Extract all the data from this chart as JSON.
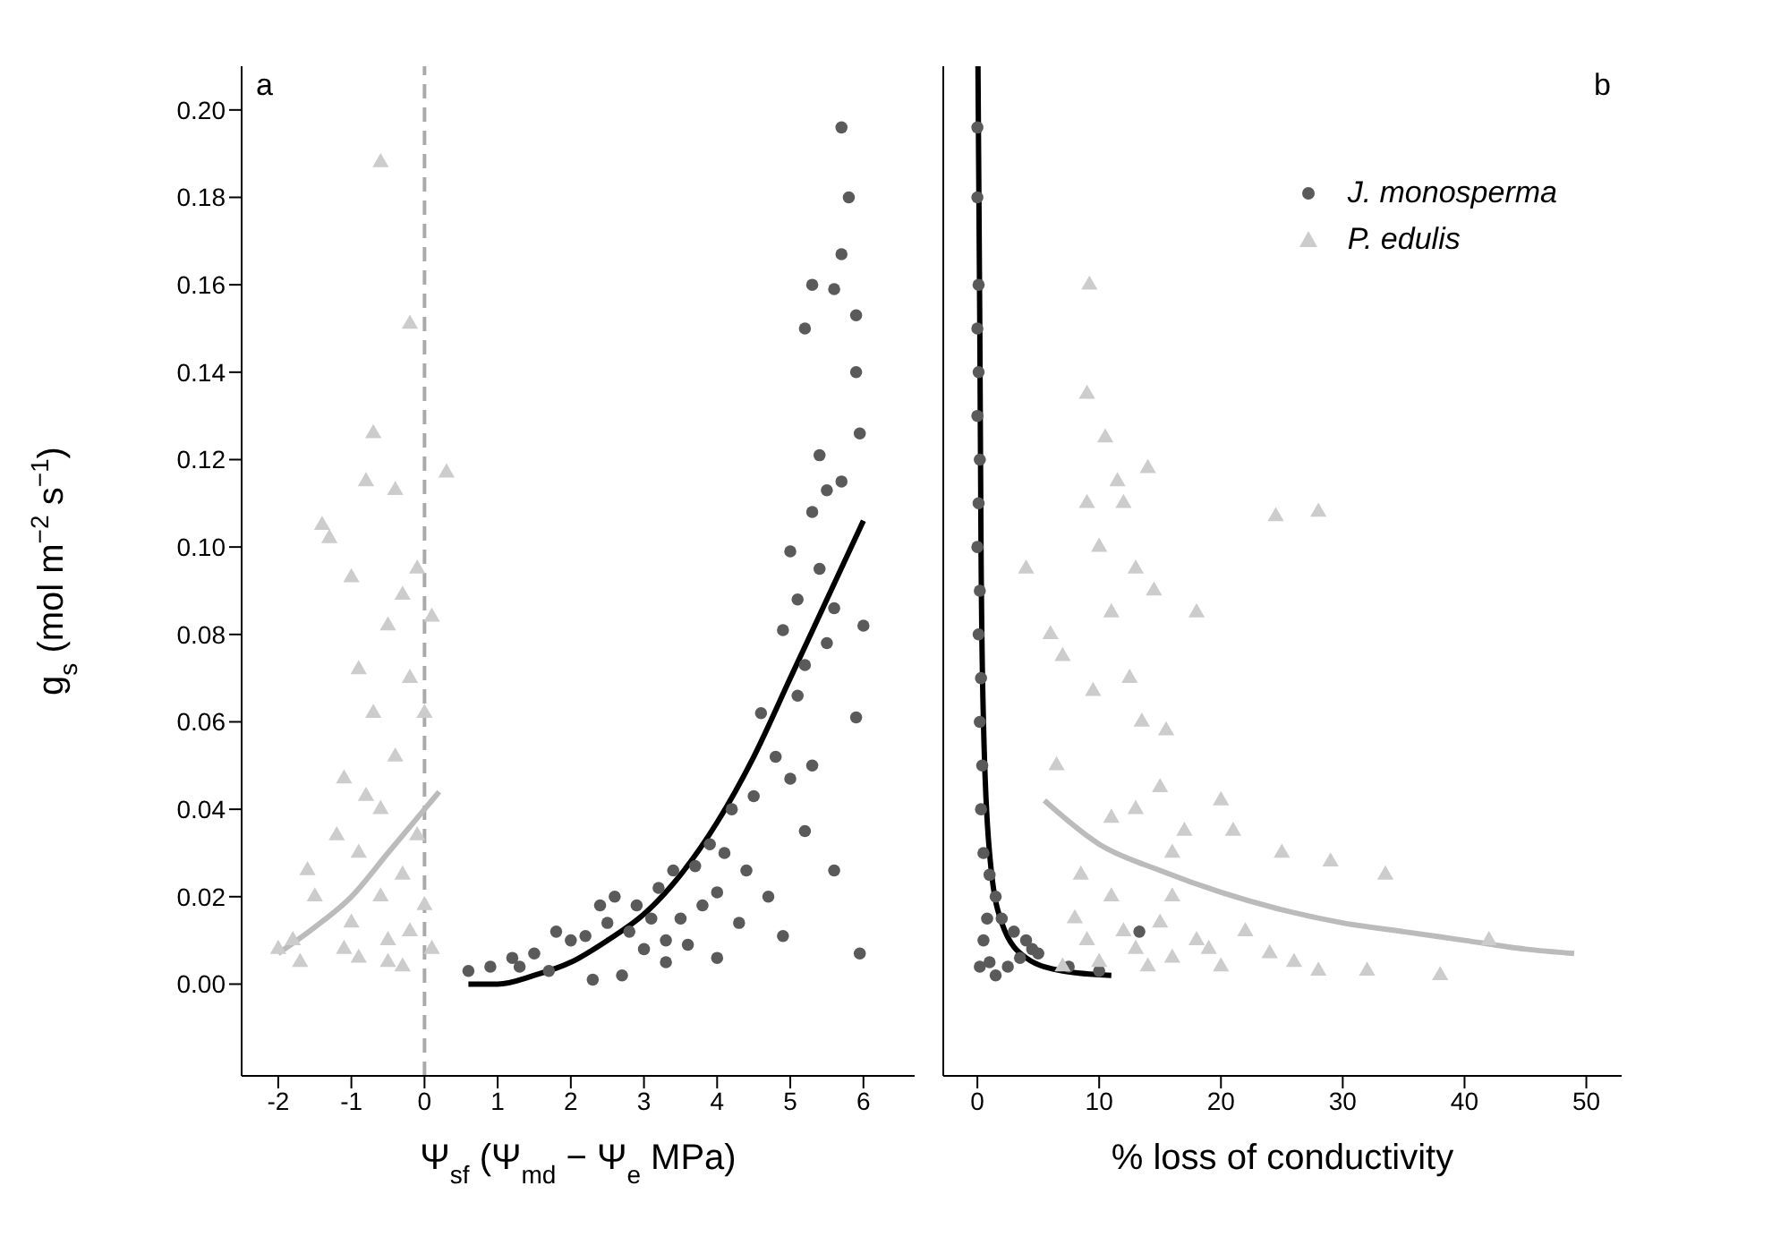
{
  "chart_data": [
    {
      "type": "scatter",
      "ylabel": "g$_{s}$ (mol m$^{−2}$ s$^{−1}$)",
      "xlabel": "Ψ$_{sf}$ (Ψ$_{md}$ − Ψ$_{e}$ MPa)",
      "xlim": [
        -2.5,
        6.7
      ],
      "xticks": [
        -2,
        -1,
        0,
        1,
        2,
        3,
        4,
        5,
        6
      ],
      "ylim": [
        -0.021,
        0.21
      ],
      "yticks": [
        {
          "value": 0,
          "label": "0.00"
        },
        {
          "value": 0.02,
          "label": "0.02"
        },
        {
          "value": 0.04,
          "label": "0.04"
        },
        {
          "value": 0.06,
          "label": "0.06"
        },
        {
          "value": 0.08,
          "label": "0.08"
        },
        {
          "value": 0.1,
          "label": "0.10"
        },
        {
          "value": 0.12,
          "label": "0.12"
        },
        {
          "value": 0.14,
          "label": "0.14"
        },
        {
          "value": 0.16,
          "label": "0.16"
        },
        {
          "value": 0.18,
          "label": "0.18"
        },
        {
          "value": 0.2,
          "label": "0.20"
        }
      ],
      "annotations": [
        "a"
      ],
      "ref_lines": [
        {
          "axis": "x",
          "value": 0,
          "color": "#aaaaaa",
          "line_style": "dashed"
        }
      ],
      "grid": false,
      "legend": false,
      "series": [
        {
          "type": "scatter",
          "marker": "triangle",
          "color": "#cccccc",
          "x": [
            -2.0,
            -1.8,
            -1.7,
            -1.5,
            -1.4,
            -1.3,
            -1.2,
            -1.1,
            -1.0,
            -1.0,
            -0.9,
            -0.9,
            -0.8,
            -0.8,
            -0.7,
            -0.7,
            -0.6,
            -0.6,
            -0.5,
            -0.5,
            -0.4,
            -0.4,
            -0.3,
            -0.3,
            -0.2,
            -0.2,
            -0.1,
            -0.1,
            0.0,
            0.0,
            0.1,
            0.1,
            0.3,
            -1.6,
            -0.9,
            -0.6,
            -0.3,
            -0.5,
            -1.1,
            -0.2
          ],
          "values": [
            0.008,
            0.01,
            0.005,
            0.02,
            0.105,
            0.102,
            0.034,
            0.047,
            0.093,
            0.014,
            0.072,
            0.006,
            0.115,
            0.043,
            0.062,
            0.126,
            0.188,
            0.02,
            0.082,
            0.01,
            0.113,
            0.052,
            0.089,
            0.004,
            0.151,
            0.07,
            0.034,
            0.095,
            0.062,
            0.018,
            0.084,
            0.008,
            0.117,
            0.026,
            0.03,
            0.04,
            0.025,
            0.005,
            0.008,
            0.012
          ]
        },
        {
          "type": "scatter",
          "marker": "circle",
          "color": "#5a5a5a",
          "x": [
            0.6,
            0.9,
            1.2,
            1.3,
            1.5,
            1.7,
            1.8,
            2.0,
            2.2,
            2.4,
            2.5,
            2.6,
            2.7,
            2.8,
            2.9,
            3.0,
            3.1,
            3.2,
            3.3,
            3.4,
            3.5,
            3.6,
            3.7,
            3.8,
            3.9,
            4.0,
            4.1,
            4.2,
            4.3,
            4.4,
            4.5,
            4.6,
            4.7,
            4.8,
            4.9,
            5.0,
            5.0,
            5.1,
            5.1,
            5.2,
            5.2,
            5.3,
            5.3,
            5.4,
            5.4,
            5.5,
            5.5,
            5.6,
            5.6,
            5.7,
            5.7,
            5.8,
            5.7,
            5.9,
            5.9,
            5.95,
            6.0,
            5.9,
            5.95,
            5.6,
            5.3,
            5.2,
            4.9,
            4.0,
            3.3,
            2.3
          ],
          "values": [
            0.003,
            0.004,
            0.006,
            0.004,
            0.007,
            0.003,
            0.012,
            0.01,
            0.011,
            0.018,
            0.014,
            0.02,
            0.002,
            0.012,
            0.018,
            0.008,
            0.015,
            0.022,
            0.01,
            0.026,
            0.015,
            0.009,
            0.027,
            0.018,
            0.032,
            0.021,
            0.03,
            0.04,
            0.014,
            0.026,
            0.043,
            0.062,
            0.02,
            0.052,
            0.081,
            0.047,
            0.099,
            0.088,
            0.066,
            0.15,
            0.073,
            0.16,
            0.108,
            0.095,
            0.121,
            0.078,
            0.113,
            0.159,
            0.026,
            0.167,
            0.115,
            0.18,
            0.196,
            0.153,
            0.14,
            0.126,
            0.082,
            0.061,
            0.007,
            0.086,
            0.05,
            0.035,
            0.011,
            0.006,
            0.005,
            0.001
          ]
        },
        {
          "type": "line",
          "color": "#bbbbbb",
          "x": [
            -2,
            -1.5,
            -1,
            -0.5,
            0,
            0.2
          ],
          "values": [
            0.007,
            0.013,
            0.02,
            0.03,
            0.04,
            0.044
          ]
        },
        {
          "type": "line",
          "color": "#000000",
          "x": [
            0.6,
            1,
            1.5,
            2,
            2.5,
            3,
            3.5,
            4,
            4.5,
            5,
            5.5,
            6
          ],
          "values": [
            0.0,
            0.0,
            0.002,
            0.005,
            0.01,
            0.016,
            0.025,
            0.037,
            0.052,
            0.07,
            0.088,
            0.106
          ]
        }
      ]
    },
    {
      "type": "scatter",
      "xlabel": "% loss of conductivity",
      "xlim": [
        -2.8,
        52.9
      ],
      "xticks": [
        0,
        10,
        20,
        30,
        40,
        50
      ],
      "ylim": [
        -0.021,
        0.21
      ],
      "yticks": [
        {
          "value": 0,
          "label": null
        },
        {
          "value": 0.02,
          "label": null
        },
        {
          "value": 0.04,
          "label": null
        },
        {
          "value": 0.06,
          "label": null
        },
        {
          "value": 0.08,
          "label": null
        },
        {
          "value": 0.1,
          "label": null
        },
        {
          "value": 0.12,
          "label": null
        },
        {
          "value": 0.14,
          "label": null
        },
        {
          "value": 0.16,
          "label": null
        },
        {
          "value": 0.18,
          "label": null
        },
        {
          "value": 0.2,
          "label": null
        }
      ],
      "tick_labels": "x",
      "annotations": [
        "b"
      ],
      "grid": false,
      "legend": "top right",
      "series": [
        {
          "name": "J. monosperma",
          "type": "scatter",
          "marker": "circle",
          "color": "#5a5a5a",
          "x": [
            0,
            0,
            0.1,
            0,
            0.1,
            0,
            0.2,
            0.1,
            0,
            0.2,
            0.1,
            0.3,
            0.2,
            0.4,
            0.3,
            0.5,
            1.0,
            1.5,
            2,
            3,
            4,
            4.5,
            5,
            0.5,
            1,
            1.5,
            2.5,
            3.5,
            13.3,
            7.5,
            10,
            0.2,
            0.8
          ],
          "values": [
            0.196,
            0.18,
            0.16,
            0.15,
            0.14,
            0.13,
            0.12,
            0.11,
            0.1,
            0.09,
            0.08,
            0.07,
            0.06,
            0.05,
            0.04,
            0.03,
            0.025,
            0.02,
            0.015,
            0.012,
            0.01,
            0.008,
            0.007,
            0.01,
            0.005,
            0.002,
            0.004,
            0.006,
            0.012,
            0.004,
            0.003,
            0.004,
            0.015
          ]
        },
        {
          "name": "P. edulis",
          "type": "scatter",
          "marker": "triangle",
          "color": "#cccccc",
          "x": [
            4,
            6,
            6.5,
            7,
            9,
            9,
            9.2,
            9.5,
            10,
            10.5,
            11,
            11.5,
            12,
            12.5,
            13,
            13.5,
            14,
            14.5,
            15,
            15.5,
            16,
            17,
            18,
            20,
            21,
            24.5,
            25,
            28,
            29,
            33.5,
            8,
            9,
            10,
            11,
            12,
            13,
            14,
            15,
            16,
            18,
            20,
            22,
            24,
            26,
            28,
            32,
            38,
            42,
            7,
            8.5,
            11,
            13,
            16,
            19
          ],
          "values": [
            0.095,
            0.08,
            0.05,
            0.075,
            0.135,
            0.11,
            0.16,
            0.067,
            0.1,
            0.125,
            0.085,
            0.115,
            0.11,
            0.07,
            0.095,
            0.06,
            0.118,
            0.09,
            0.045,
            0.058,
            0.03,
            0.035,
            0.085,
            0.042,
            0.035,
            0.107,
            0.03,
            0.108,
            0.028,
            0.025,
            0.015,
            0.01,
            0.005,
            0.02,
            0.012,
            0.008,
            0.004,
            0.014,
            0.006,
            0.01,
            0.004,
            0.012,
            0.007,
            0.005,
            0.003,
            0.003,
            0.002,
            0.01,
            0.004,
            0.025,
            0.038,
            0.04,
            0.02,
            0.008
          ]
        },
        {
          "type": "line",
          "color": "#000000",
          "x": [
            0.05,
            0.1,
            0.2,
            0.3,
            0.5,
            1,
            2,
            4,
            7,
            11
          ],
          "values": [
            0.21,
            0.19,
            0.15,
            0.1,
            0.06,
            0.03,
            0.014,
            0.006,
            0.003,
            0.002
          ]
        },
        {
          "type": "line",
          "color": "#bbbbbb",
          "x": [
            5.5,
            10,
            15,
            20,
            25,
            30,
            35,
            40,
            45,
            49
          ],
          "values": [
            0.042,
            0.032,
            0.026,
            0.021,
            0.017,
            0.014,
            0.012,
            0.01,
            0.008,
            0.007
          ]
        }
      ]
    }
  ]
}
